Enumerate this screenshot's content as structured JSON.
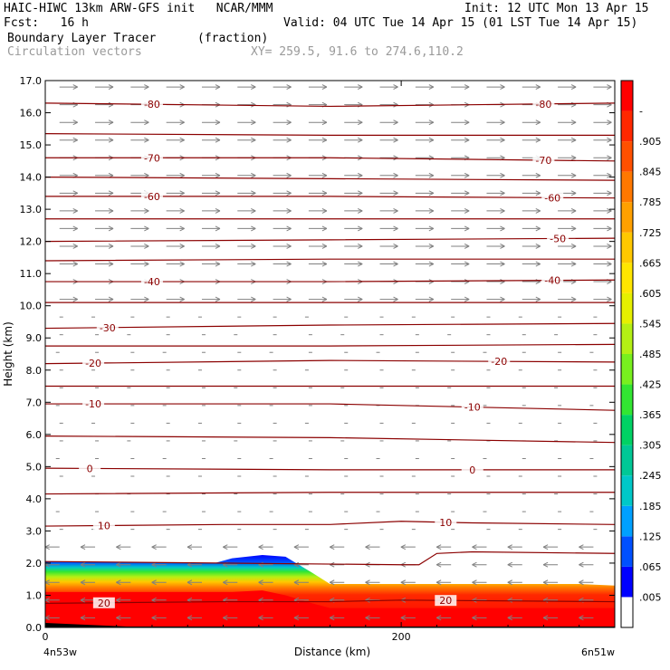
{
  "header": {
    "title_left": "HAIC-HIWC 13km ARW-GFS init   NCAR/MMM",
    "init": "Init: 12 UTC Mon 13 Apr 15",
    "fcst": "Fcst:   16 h",
    "valid": "Valid: 04 UTC Tue 14 Apr 15 (01 LST Tue 14 Apr 15)",
    "field": "Boundary Layer Tracer",
    "field_units": "(fraction)",
    "vectors": "Circulation vectors",
    "xy": "XY= 259.5, 91.6 to 274.6,110.2"
  },
  "colors": {
    "contour": "#8b0000",
    "vector": "#808080",
    "colorbar": [
      "#ffffff",
      "#0000ff",
      "#0050ff",
      "#00a0ff",
      "#00c8c8",
      "#00c896",
      "#00d264",
      "#32e632",
      "#78f01e",
      "#b4f014",
      "#e6f000",
      "#ffe600",
      "#ffc800",
      "#ffa000",
      "#ff7800",
      "#ff5000",
      "#ff2800",
      "#ff0000"
    ]
  },
  "chart_data": {
    "type": "cross-section",
    "xlabel": "Distance (km)",
    "ylabel": "Height (km)",
    "xlim": [
      0,
      320
    ],
    "ylim": [
      0,
      17
    ],
    "x_ticks": [
      {
        "value": 0,
        "label": "0"
      },
      {
        "value": 200,
        "label": "200"
      }
    ],
    "x_end_labels": {
      "left": "4n53w",
      "right": "6n51w"
    },
    "y_ticks": [
      "0.0",
      "1.0",
      "2.0",
      "3.0",
      "4.0",
      "5.0",
      "6.0",
      "7.0",
      "8.0",
      "9.0",
      "10.0",
      "11.0",
      "12.0",
      "13.0",
      "14.0",
      "15.0",
      "16.0",
      "17.0"
    ],
    "colorbar_labels": [
      ".005",
      ".065",
      ".125",
      ".185",
      ".245",
      ".305",
      ".365",
      ".425",
      ".485",
      ".545",
      ".605",
      ".665",
      ".725",
      ".785",
      ".845",
      ".905",
      "-"
    ],
    "tracer_layer": {
      "x": [
        0,
        95,
        105,
        122,
        135,
        150,
        160,
        200,
        240,
        280,
        300,
        320
      ],
      "top": [
        2.05,
        2.0,
        2.15,
        2.25,
        2.2,
        1.7,
        1.35,
        1.35,
        1.35,
        1.35,
        1.35,
        1.3
      ],
      "red_top": [
        1.1,
        1.1,
        1.1,
        1.15,
        1.0,
        0.75,
        0.6,
        0.6,
        0.6,
        0.6,
        0.6,
        0.6
      ]
    },
    "isotherms": [
      {
        "value": -80,
        "label": "-80",
        "x": [
          0,
          160,
          320
        ],
        "y": [
          16.3,
          16.2,
          16.3
        ],
        "label_x": [
          60,
          280
        ]
      },
      {
        "value": -75,
        "label": "",
        "x": [
          0,
          160,
          320
        ],
        "y": [
          15.35,
          15.3,
          15.3
        ],
        "label_x": []
      },
      {
        "value": -70,
        "label": "-70",
        "x": [
          0,
          160,
          320
        ],
        "y": [
          14.6,
          14.6,
          14.5
        ],
        "label_x": [
          60,
          280
        ]
      },
      {
        "value": -65,
        "label": "",
        "x": [
          0,
          160,
          320
        ],
        "y": [
          14.0,
          13.95,
          13.9
        ],
        "label_x": []
      },
      {
        "value": -60,
        "label": "-60",
        "x": [
          0,
          160,
          320
        ],
        "y": [
          13.4,
          13.4,
          13.35
        ],
        "label_x": [
          60,
          285
        ]
      },
      {
        "value": -55,
        "label": "",
        "x": [
          0,
          160,
          320
        ],
        "y": [
          12.7,
          12.7,
          12.7
        ],
        "label_x": []
      },
      {
        "value": -50,
        "label": "-50",
        "x": [
          0,
          160,
          320
        ],
        "y": [
          12.0,
          12.05,
          12.1
        ],
        "label_x": [
          288
        ]
      },
      {
        "value": -45,
        "label": "",
        "x": [
          0,
          160,
          320
        ],
        "y": [
          11.4,
          11.45,
          11.45
        ],
        "label_x": []
      },
      {
        "value": -40,
        "label": "-40",
        "x": [
          0,
          160,
          320
        ],
        "y": [
          10.75,
          10.75,
          10.8
        ],
        "label_x": [
          60,
          285
        ]
      },
      {
        "value": -35,
        "label": "",
        "x": [
          0,
          160,
          320
        ],
        "y": [
          10.1,
          10.1,
          10.1
        ],
        "label_x": []
      },
      {
        "value": -30,
        "label": "-30",
        "x": [
          0,
          160,
          320
        ],
        "y": [
          9.3,
          9.4,
          9.45
        ],
        "label_x": [
          35
        ]
      },
      {
        "value": -25,
        "label": "",
        "x": [
          0,
          160,
          320
        ],
        "y": [
          8.75,
          8.75,
          8.8
        ],
        "label_x": []
      },
      {
        "value": -20,
        "label": "-20",
        "x": [
          0,
          160,
          320
        ],
        "y": [
          8.2,
          8.3,
          8.25
        ],
        "label_x": [
          27,
          255
        ]
      },
      {
        "value": -15,
        "label": "",
        "x": [
          0,
          160,
          320
        ],
        "y": [
          7.5,
          7.5,
          7.5
        ],
        "label_x": []
      },
      {
        "value": -10,
        "label": "-10",
        "x": [
          0,
          160,
          320
        ],
        "y": [
          6.95,
          6.95,
          6.75
        ],
        "label_x": [
          27,
          240
        ]
      },
      {
        "value": -5,
        "label": "",
        "x": [
          0,
          160,
          320
        ],
        "y": [
          5.95,
          5.9,
          5.75
        ],
        "label_x": []
      },
      {
        "value": 0,
        "label": "0",
        "x": [
          0,
          160,
          320
        ],
        "y": [
          4.95,
          4.9,
          4.9
        ],
        "label_x": [
          25,
          240
        ]
      },
      {
        "value": 5,
        "label": "",
        "x": [
          0,
          160,
          320
        ],
        "y": [
          4.15,
          4.2,
          4.2
        ],
        "label_x": []
      },
      {
        "value": 10,
        "label": "10",
        "x": [
          0,
          100,
          160,
          200,
          240,
          320
        ],
        "y": [
          3.15,
          3.2,
          3.2,
          3.3,
          3.25,
          3.2
        ],
        "label_x": [
          33,
          225
        ]
      },
      {
        "value": 15,
        "label": "",
        "x": [
          0,
          200,
          210,
          220,
          240,
          320
        ],
        "y": [
          2.05,
          1.95,
          1.95,
          2.3,
          2.35,
          2.3
        ],
        "label_x": []
      },
      {
        "value": 20,
        "label": "20",
        "x": [
          0,
          100,
          160,
          200,
          320
        ],
        "y": [
          0.75,
          0.8,
          0.8,
          0.85,
          0.8
        ],
        "label_x": [
          33,
          225
        ]
      }
    ],
    "vectors": {
      "upper": {
        "height_from": 10.0,
        "height_to": 17.0,
        "direction": "east",
        "relative_length": 1.0
      },
      "middle": {
        "height_from": 3.0,
        "height_to": 10.0,
        "direction": "variable",
        "relative_length": 0.3
      },
      "lower": {
        "height_from": 0.0,
        "height_to": 3.0,
        "direction": "west",
        "relative_length": 0.9
      }
    }
  }
}
